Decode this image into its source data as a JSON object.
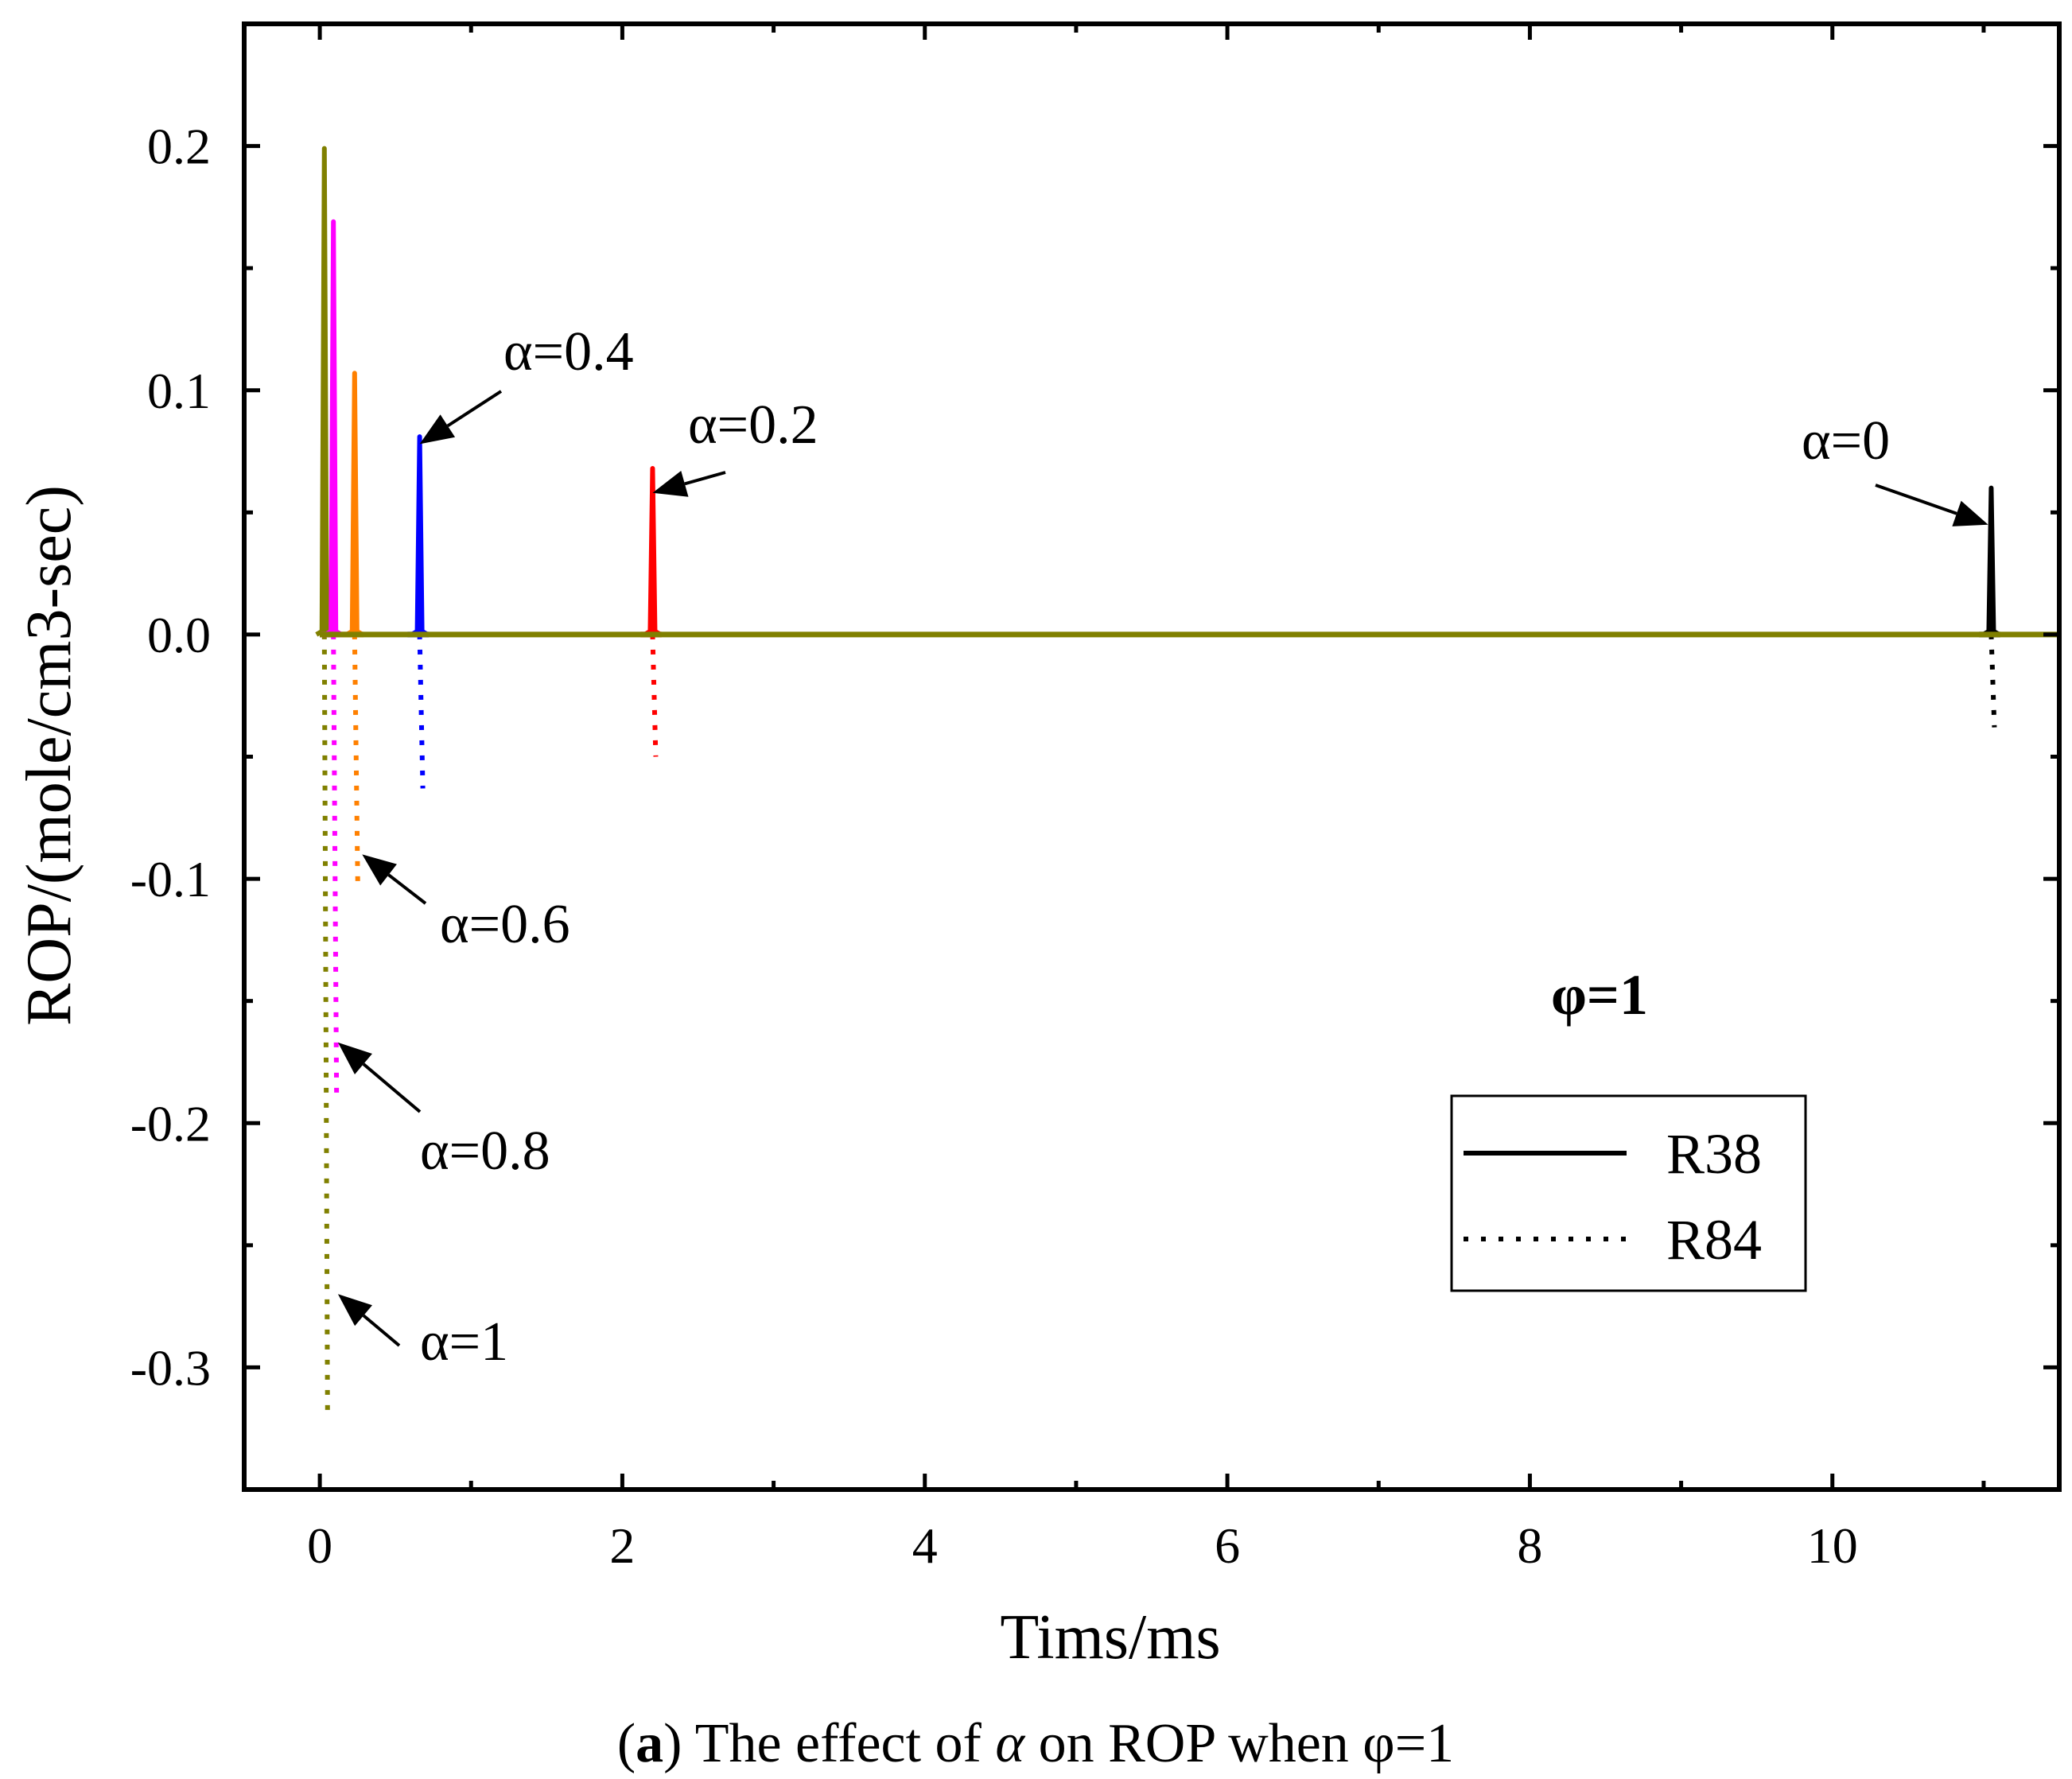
{
  "chart_data": {
    "type": "line",
    "xlabel": "Tims/ms",
    "ylabel": "ROP/(mole/cm3-sec)",
    "xlim": [
      -0.5,
      11.5
    ],
    "ylim": [
      -0.35,
      0.25
    ],
    "xticks": [
      0,
      2,
      4,
      6,
      8,
      10
    ],
    "xtick_labels": [
      "0",
      "2",
      "4",
      "6",
      "8",
      "10"
    ],
    "xminor": [
      1,
      3,
      5,
      7,
      9,
      11
    ],
    "yticks": [
      -0.3,
      -0.2,
      -0.1,
      0.0,
      0.1,
      0.2
    ],
    "ytick_labels": [
      "-0.3",
      "-0.2",
      "-0.1",
      "0.0",
      "0.1",
      "0.2"
    ],
    "yminor": [
      -0.25,
      -0.15,
      -0.05,
      0.05,
      0.15
    ],
    "legend": {
      "position": "lower-right",
      "entries": [
        {
          "label": "R38",
          "style": "solid"
        },
        {
          "label": "R84",
          "style": "dotted"
        }
      ]
    },
    "series": [
      {
        "name": "α=1",
        "color": "#808000",
        "time": 0.03,
        "r38_peak": 0.199,
        "r84_peak": -0.318
      },
      {
        "name": "α=0.8",
        "color": "#ff00ff",
        "time": 0.09,
        "r38_peak": 0.169,
        "r84_peak": -0.19
      },
      {
        "name": "α=0.6",
        "color": "#ff8000",
        "time": 0.23,
        "r38_peak": 0.107,
        "r84_peak": -0.103
      },
      {
        "name": "α=0.4",
        "color": "#0000ff",
        "time": 0.66,
        "r38_peak": 0.081,
        "r84_peak": -0.063
      },
      {
        "name": "α=0.2",
        "color": "#ff0000",
        "time": 2.2,
        "r38_peak": 0.068,
        "r84_peak": -0.05
      },
      {
        "name": "α=0",
        "color": "#000000",
        "time": 11.05,
        "r38_peak": 0.06,
        "r84_peak": -0.038
      }
    ],
    "annotations": [
      {
        "text": "α=0.4",
        "target_x": 0.66,
        "target_y": 0.078
      },
      {
        "text": "α=0.2",
        "target_x": 2.2,
        "target_y": 0.058
      },
      {
        "text": "α=0",
        "target_x": 11.03,
        "target_y": 0.045
      },
      {
        "text": "α=0.6",
        "target_x": 0.28,
        "target_y": -0.09
      },
      {
        "text": "α=0.8",
        "target_x": 0.12,
        "target_y": -0.167
      },
      {
        "text": "α=1",
        "target_x": 0.12,
        "target_y": -0.27
      }
    ],
    "inset_text": "φ=1"
  },
  "caption": {
    "label": "a",
    "text_before": " The effect of ",
    "symbol": "α",
    "text_after": " on ROP when φ=1"
  }
}
